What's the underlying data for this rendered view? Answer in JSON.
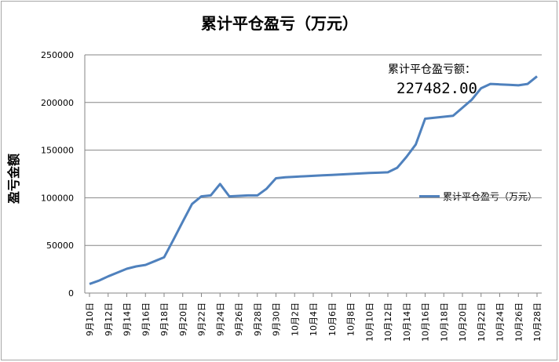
{
  "chart_data": {
    "type": "line",
    "title": "累计平仓盈亏（万元）",
    "xlabel": "",
    "ylabel": "盈亏金额",
    "ylim": [
      0,
      250000
    ],
    "yticks": [
      0,
      50000,
      100000,
      150000,
      200000,
      250000
    ],
    "grid": "horizontal",
    "legend_position": "right",
    "x_tick_labels": [
      "9月10日",
      "9月12日",
      "9月14日",
      "9月16日",
      "9月18日",
      "9月20日",
      "9月22日",
      "9月24日",
      "9月26日",
      "9月28日",
      "9月30日",
      "10月2日",
      "10月4日",
      "10月6日",
      "10月8日",
      "10月10日",
      "10月12日",
      "10月14日",
      "10月16日",
      "10月18日",
      "10月20日",
      "10月22日",
      "10月24日",
      "10月26日",
      "10月28日"
    ],
    "annotation": {
      "label": "累计平仓盈亏额：",
      "value": "227482.00"
    },
    "series": [
      {
        "name": "累计平仓盈亏（万元）",
        "color": "#4f81bd",
        "points": [
          {
            "x": "9月10日",
            "y": 9500
          },
          {
            "x": "9月11日",
            "y": 13000
          },
          {
            "x": "9月12日",
            "y": 17500
          },
          {
            "x": "9月13日",
            "y": 21500
          },
          {
            "x": "9月14日",
            "y": 25500
          },
          {
            "x": "9月15日",
            "y": 28000
          },
          {
            "x": "9月16日",
            "y": 29500
          },
          {
            "x": "9月17日",
            "y": 33500
          },
          {
            "x": "9月18日",
            "y": 37500
          },
          {
            "x": "9月19日",
            "y": 56000
          },
          {
            "x": "9月20日",
            "y": 75000
          },
          {
            "x": "9月21日",
            "y": 93500
          },
          {
            "x": "9月22日",
            "y": 101500
          },
          {
            "x": "9月23日",
            "y": 102500
          },
          {
            "x": "9月24日",
            "y": 114500
          },
          {
            "x": "9月25日",
            "y": 101500
          },
          {
            "x": "9月26日",
            "y": 102000
          },
          {
            "x": "9月27日",
            "y": 102500
          },
          {
            "x": "9月28日",
            "y": 102500
          },
          {
            "x": "9月29日",
            "y": 109500
          },
          {
            "x": "9月30日",
            "y": 120500
          },
          {
            "x": "10月1日",
            "y": 121500
          },
          {
            "x": "10月2日",
            "y": 122000
          },
          {
            "x": "10月3日",
            "y": 122500
          },
          {
            "x": "10月4日",
            "y": 123000
          },
          {
            "x": "10月5日",
            "y": 123500
          },
          {
            "x": "10月6日",
            "y": 124000
          },
          {
            "x": "10月7日",
            "y": 124500
          },
          {
            "x": "10月8日",
            "y": 125000
          },
          {
            "x": "10月9日",
            "y": 125500
          },
          {
            "x": "10月10日",
            "y": 126000
          },
          {
            "x": "10月11日",
            "y": 126300
          },
          {
            "x": "10月12日",
            "y": 126700
          },
          {
            "x": "10月13日",
            "y": 131500
          },
          {
            "x": "10月14日",
            "y": 143000
          },
          {
            "x": "10月15日",
            "y": 156000
          },
          {
            "x": "10月16日",
            "y": 183000
          },
          {
            "x": "10月17日",
            "y": 184000
          },
          {
            "x": "10月18日",
            "y": 185000
          },
          {
            "x": "10月19日",
            "y": 186000
          },
          {
            "x": "10月20日",
            "y": 194500
          },
          {
            "x": "10月21日",
            "y": 203000
          },
          {
            "x": "10月22日",
            "y": 215000
          },
          {
            "x": "10月23日",
            "y": 219500
          },
          {
            "x": "10月24日",
            "y": 219000
          },
          {
            "x": "10月25日",
            "y": 218500
          },
          {
            "x": "10月26日",
            "y": 218000
          },
          {
            "x": "10月27日",
            "y": 219500
          },
          {
            "x": "10月28日",
            "y": 227482
          }
        ]
      }
    ]
  }
}
